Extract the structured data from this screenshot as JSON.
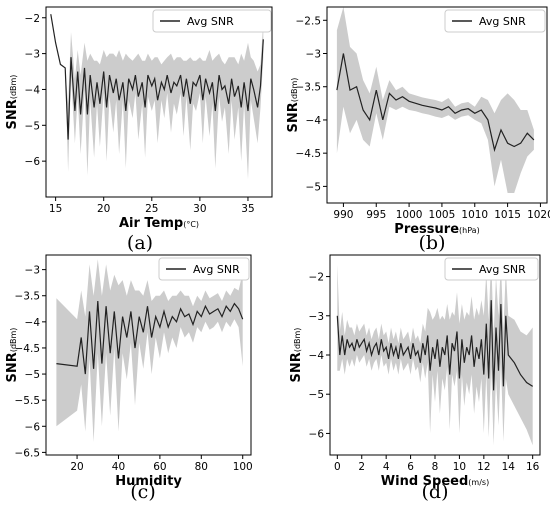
{
  "legend_label": "Avg SNR",
  "chart_data": [
    {
      "panel": "(a)",
      "type": "line",
      "xlabel": "Air Temp",
      "xunit": "(°C)",
      "ylabel": "SNR",
      "yunit": "(dBm)",
      "xlim": [
        14,
        37.5
      ],
      "ylim": [
        -7,
        -1.7
      ],
      "xticks": [
        15,
        20,
        25,
        30,
        35
      ],
      "yticks": [
        -2,
        -3,
        -4,
        -5,
        -6
      ],
      "legend": "top-right",
      "band": true,
      "band_color": "#cccccc",
      "line_color": "#222222",
      "series": [
        {
          "name": "Avg SNR",
          "x": [
            14.5,
            15.0,
            15.5,
            16.0,
            16.3,
            16.6,
            17.0,
            17.3,
            17.6,
            18.0,
            18.3,
            18.6,
            19.0,
            19.3,
            19.6,
            20.0,
            20.3,
            20.6,
            21.0,
            21.3,
            21.6,
            22.0,
            22.3,
            22.6,
            23.0,
            23.3,
            23.6,
            24.0,
            24.3,
            24.6,
            25.0,
            25.3,
            25.6,
            26.0,
            26.3,
            26.6,
            27.0,
            27.3,
            27.6,
            28.0,
            28.3,
            28.6,
            29.0,
            29.3,
            29.6,
            30.0,
            30.3,
            30.6,
            31.0,
            31.3,
            31.6,
            32.0,
            32.3,
            32.6,
            33.0,
            33.3,
            33.6,
            34.0,
            34.3,
            34.6,
            35.0,
            35.3,
            35.6,
            36.0,
            36.3,
            36.6
          ],
          "values": [
            -1.9,
            -2.7,
            -3.3,
            -3.4,
            -5.4,
            -3.1,
            -4.6,
            -3.5,
            -4.7,
            -3.4,
            -4.7,
            -3.6,
            -4.5,
            -3.8,
            -4.4,
            -3.5,
            -4.5,
            -3.6,
            -4.1,
            -3.7,
            -4.3,
            -3.8,
            -4.6,
            -3.7,
            -4.0,
            -3.6,
            -4.2,
            -3.8,
            -4.5,
            -3.6,
            -3.9,
            -3.7,
            -4.3,
            -3.8,
            -4.0,
            -3.6,
            -4.1,
            -3.8,
            -3.9,
            -3.6,
            -4.2,
            -3.7,
            -4.4,
            -3.8,
            -3.9,
            -3.6,
            -4.3,
            -3.7,
            -4.1,
            -3.8,
            -4.6,
            -3.6,
            -4.0,
            -3.9,
            -4.4,
            -3.7,
            -4.2,
            -3.9,
            -4.5,
            -3.8,
            -4.6,
            -3.7,
            -4.0,
            -4.5,
            -3.9,
            -2.6
          ],
          "lower": [
            -1.9,
            -2.7,
            -3.3,
            -3.4,
            -6.3,
            -3.6,
            -5.5,
            -4.2,
            -5.8,
            -4.0,
            -6.4,
            -4.3,
            -5.9,
            -4.4,
            -5.6,
            -4.1,
            -6.0,
            -4.2,
            -5.2,
            -4.3,
            -5.8,
            -4.3,
            -6.2,
            -4.3,
            -4.8,
            -4.1,
            -5.4,
            -4.4,
            -5.9,
            -4.2,
            -4.6,
            -4.3,
            -5.5,
            -4.3,
            -4.8,
            -4.1,
            -5.2,
            -4.4,
            -4.7,
            -4.1,
            -5.3,
            -4.2,
            -5.7,
            -4.4,
            -4.6,
            -4.1,
            -5.5,
            -4.2,
            -5.3,
            -4.4,
            -6.2,
            -4.2,
            -4.9,
            -4.5,
            -5.8,
            -4.3,
            -5.4,
            -4.5,
            -6.0,
            -4.4,
            -6.5,
            -4.3,
            -4.8,
            -5.5,
            -4.5,
            -3.1
          ],
          "upper": [
            -1.9,
            -2.7,
            -3.3,
            -3.4,
            -4.4,
            -2.4,
            -3.7,
            -2.9,
            -3.6,
            -2.7,
            -3.2,
            -3.0,
            -3.2,
            -3.2,
            -3.3,
            -2.9,
            -3.1,
            -3.0,
            -3.0,
            -3.1,
            -2.9,
            -3.2,
            -3.0,
            -3.1,
            -3.2,
            -3.1,
            -3.0,
            -3.2,
            -3.2,
            -3.0,
            -3.2,
            -3.1,
            -3.1,
            -3.3,
            -3.2,
            -3.1,
            -3.0,
            -3.2,
            -3.1,
            -3.1,
            -3.2,
            -3.2,
            -3.1,
            -3.2,
            -3.2,
            -3.1,
            -3.2,
            -3.2,
            -2.9,
            -3.2,
            -3.1,
            -3.0,
            -3.2,
            -3.3,
            -3.1,
            -3.1,
            -3.1,
            -3.3,
            -3.0,
            -3.2,
            -2.7,
            -3.1,
            -3.2,
            -3.5,
            -3.3,
            -2.1
          ]
        }
      ]
    },
    {
      "panel": "(b)",
      "type": "line",
      "xlabel": "Pressure",
      "xunit": "(hPa)",
      "ylabel": "SNR",
      "yunit": "(dBm)",
      "xlim": [
        987.5,
        1021
      ],
      "ylim": [
        -5.25,
        -2.3
      ],
      "xticks": [
        990,
        995,
        1000,
        1005,
        1010,
        1015,
        1020
      ],
      "yticks": [
        -2.5,
        -3.0,
        -3.5,
        -4.0,
        -4.5,
        -5.0
      ],
      "legend": "top-right",
      "band": true,
      "band_color": "#cccccc",
      "line_color": "#222222",
      "series": [
        {
          "name": "Avg SNR",
          "x": [
            989,
            990,
            991,
            992,
            993,
            994,
            995,
            996,
            997,
            998,
            999,
            1000,
            1001,
            1002,
            1003,
            1004,
            1005,
            1006,
            1007,
            1008,
            1009,
            1010,
            1011,
            1012,
            1013,
            1014,
            1015,
            1016,
            1017,
            1018,
            1019
          ],
          "values": [
            -3.55,
            -3.0,
            -3.55,
            -3.5,
            -3.85,
            -4.0,
            -3.55,
            -4.0,
            -3.6,
            -3.7,
            -3.65,
            -3.72,
            -3.75,
            -3.78,
            -3.8,
            -3.82,
            -3.85,
            -3.8,
            -3.9,
            -3.85,
            -3.83,
            -3.9,
            -3.85,
            -4.0,
            -4.45,
            -4.15,
            -4.35,
            -4.4,
            -4.35,
            -4.2,
            -4.3
          ],
          "lower": [
            -4.5,
            -3.8,
            -4.2,
            -4.0,
            -4.3,
            -4.4,
            -3.9,
            -4.3,
            -3.8,
            -3.85,
            -3.8,
            -3.85,
            -3.87,
            -3.9,
            -3.92,
            -3.95,
            -3.97,
            -3.93,
            -4.0,
            -3.95,
            -3.93,
            -4.0,
            -4.05,
            -4.3,
            -5.0,
            -4.6,
            -5.1,
            -5.1,
            -4.8,
            -4.55,
            -4.45
          ],
          "upper": [
            -2.65,
            -2.3,
            -2.9,
            -3.0,
            -3.4,
            -3.6,
            -3.2,
            -3.7,
            -3.4,
            -3.55,
            -3.5,
            -3.6,
            -3.63,
            -3.66,
            -3.68,
            -3.7,
            -3.73,
            -3.67,
            -3.8,
            -3.75,
            -3.73,
            -3.8,
            -3.65,
            -3.7,
            -3.9,
            -3.7,
            -3.6,
            -3.7,
            -3.85,
            -3.85,
            -4.15
          ]
        }
      ]
    },
    {
      "panel": "(c)",
      "type": "line",
      "xlabel": "Humidity",
      "xunit": "",
      "ylabel": "SNR",
      "yunit": "(dBm)",
      "xlim": [
        5,
        104
      ],
      "ylim": [
        -6.55,
        -2.72
      ],
      "xticks": [
        20,
        40,
        60,
        80,
        100
      ],
      "yticks": [
        -3.0,
        -3.5,
        -4.0,
        -4.5,
        -5.0,
        -5.5,
        -6.0,
        -6.5
      ],
      "legend": "top-right",
      "band": true,
      "band_color": "#cccccc",
      "line_color": "#222222",
      "series": [
        {
          "name": "Avg SNR",
          "x": [
            10,
            20,
            22,
            24,
            26,
            28,
            30,
            32,
            34,
            36,
            38,
            40,
            42,
            44,
            46,
            48,
            50,
            52,
            54,
            56,
            58,
            60,
            62,
            64,
            66,
            68,
            70,
            72,
            74,
            76,
            78,
            80,
            82,
            84,
            86,
            88,
            90,
            92,
            94,
            96,
            98,
            100
          ],
          "values": [
            -4.8,
            -4.85,
            -4.3,
            -5.0,
            -3.8,
            -4.9,
            -3.6,
            -4.8,
            -3.7,
            -4.6,
            -3.8,
            -4.7,
            -3.9,
            -4.3,
            -3.8,
            -4.5,
            -3.9,
            -4.2,
            -3.7,
            -4.3,
            -3.9,
            -4.1,
            -3.8,
            -4.1,
            -3.9,
            -4.0,
            -3.75,
            -3.9,
            -3.85,
            -4.05,
            -3.8,
            -3.9,
            -3.7,
            -3.85,
            -3.8,
            -3.75,
            -3.9,
            -3.7,
            -3.8,
            -3.65,
            -3.75,
            -3.95
          ],
          "lower": [
            -6.0,
            -5.7,
            -5.2,
            -6.1,
            -4.7,
            -6.3,
            -4.6,
            -6.0,
            -4.6,
            -5.8,
            -4.5,
            -6.1,
            -4.6,
            -5.1,
            -4.4,
            -5.6,
            -4.4,
            -4.9,
            -4.2,
            -5.0,
            -4.3,
            -4.7,
            -4.2,
            -4.6,
            -4.3,
            -4.5,
            -4.1,
            -4.3,
            -4.2,
            -4.4,
            -4.1,
            -4.2,
            -4.0,
            -4.15,
            -4.1,
            -4.0,
            -4.2,
            -4.0,
            -4.1,
            -3.95,
            -4.1,
            -4.85
          ],
          "upper": [
            -3.55,
            -3.95,
            -3.4,
            -3.9,
            -2.9,
            -3.5,
            -2.8,
            -3.5,
            -2.9,
            -3.4,
            -3.1,
            -3.3,
            -3.2,
            -3.5,
            -3.2,
            -3.4,
            -3.4,
            -3.5,
            -3.2,
            -3.6,
            -3.5,
            -3.5,
            -3.4,
            -3.6,
            -3.5,
            -3.5,
            -3.4,
            -3.5,
            -3.5,
            -3.7,
            -3.5,
            -3.6,
            -3.4,
            -3.55,
            -3.5,
            -3.45,
            -3.6,
            -3.4,
            -3.5,
            -3.35,
            -3.4,
            -3.05
          ]
        }
      ]
    },
    {
      "panel": "(d)",
      "type": "line",
      "xlabel": "Wind Speed",
      "xunit": "(m/s)",
      "ylabel": "SNR",
      "yunit": "(dBm)",
      "xlim": [
        -0.6,
        16.6
      ],
      "ylim": [
        -6.55,
        -1.45
      ],
      "xticks": [
        0,
        2,
        4,
        6,
        8,
        10,
        12,
        14,
        16
      ],
      "yticks": [
        -2,
        -3,
        -4,
        -5,
        -6
      ],
      "legend": "top-right",
      "band": true,
      "band_color": "#cccccc",
      "line_color": "#222222",
      "series": [
        {
          "name": "Avg SNR",
          "x": [
            0.0,
            0.2,
            0.4,
            0.6,
            0.8,
            1.0,
            1.2,
            1.4,
            1.6,
            1.8,
            2.0,
            2.2,
            2.4,
            2.6,
            2.8,
            3.0,
            3.2,
            3.4,
            3.6,
            3.8,
            4.0,
            4.2,
            4.4,
            4.6,
            4.8,
            5.0,
            5.2,
            5.4,
            5.6,
            5.8,
            6.0,
            6.2,
            6.4,
            6.6,
            6.8,
            7.0,
            7.2,
            7.4,
            7.6,
            7.8,
            8.0,
            8.2,
            8.4,
            8.6,
            8.8,
            9.0,
            9.2,
            9.4,
            9.6,
            9.8,
            10.0,
            10.2,
            10.4,
            10.6,
            10.8,
            11.0,
            11.2,
            11.4,
            11.6,
            11.8,
            12.0,
            12.2,
            12.4,
            12.6,
            12.8,
            13.0,
            13.2,
            13.4,
            13.6,
            13.8,
            14.0,
            14.5,
            15.0,
            15.5,
            16.0
          ],
          "values": [
            -3.0,
            -4.0,
            -3.5,
            -4.0,
            -3.6,
            -3.8,
            -3.7,
            -3.9,
            -3.6,
            -3.8,
            -3.7,
            -3.6,
            -3.9,
            -3.7,
            -4.0,
            -3.8,
            -3.7,
            -4.0,
            -3.6,
            -3.9,
            -3.8,
            -4.1,
            -3.7,
            -4.0,
            -3.8,
            -4.1,
            -3.7,
            -4.0,
            -3.9,
            -3.8,
            -4.1,
            -3.7,
            -4.0,
            -3.9,
            -4.2,
            -3.7,
            -4.0,
            -3.5,
            -4.4,
            -3.8,
            -4.1,
            -3.6,
            -4.3,
            -3.8,
            -4.0,
            -3.5,
            -4.5,
            -3.7,
            -3.9,
            -3.4,
            -4.6,
            -3.6,
            -4.2,
            -3.8,
            -4.0,
            -3.5,
            -4.3,
            -3.8,
            -4.1,
            -3.6,
            -4.5,
            -3.2,
            -4.6,
            -2.6,
            -4.9,
            -3.3,
            -4.4,
            -2.7,
            -4.8,
            -3.0,
            -4.0,
            -4.2,
            -4.5,
            -4.7,
            -4.8
          ],
          "lower": [
            -4.4,
            -4.4,
            -4.1,
            -4.5,
            -4.1,
            -4.3,
            -4.1,
            -4.3,
            -4.0,
            -4.2,
            -4.1,
            -4.0,
            -4.3,
            -4.1,
            -4.4,
            -4.2,
            -4.1,
            -4.4,
            -4.0,
            -4.3,
            -4.2,
            -4.5,
            -4.1,
            -4.4,
            -4.2,
            -4.5,
            -4.1,
            -4.4,
            -4.3,
            -4.2,
            -4.5,
            -4.1,
            -4.4,
            -4.3,
            -4.7,
            -4.2,
            -4.6,
            -4.2,
            -6.0,
            -4.5,
            -5.2,
            -4.4,
            -5.5,
            -4.6,
            -4.9,
            -4.3,
            -5.9,
            -4.5,
            -4.8,
            -4.4,
            -6.0,
            -4.5,
            -5.3,
            -4.7,
            -5.0,
            -4.5,
            -5.5,
            -4.8,
            -5.2,
            -4.6,
            -6.0,
            -4.5,
            -6.1,
            -4.3,
            -6.3,
            -4.6,
            -5.8,
            -4.2,
            -6.2,
            -4.6,
            -5.0,
            -5.3,
            -5.6,
            -5.9,
            -6.3
          ],
          "upper": [
            -1.7,
            -3.4,
            -2.9,
            -3.5,
            -3.1,
            -3.3,
            -3.3,
            -3.5,
            -3.2,
            -3.4,
            -3.3,
            -3.2,
            -3.5,
            -3.3,
            -3.6,
            -3.4,
            -3.3,
            -3.6,
            -3.2,
            -3.5,
            -3.4,
            -3.7,
            -3.3,
            -3.6,
            -3.4,
            -3.7,
            -3.3,
            -3.6,
            -3.5,
            -3.4,
            -3.7,
            -3.3,
            -3.6,
            -3.5,
            -3.7,
            -3.2,
            -3.4,
            -2.8,
            -2.9,
            -3.1,
            -3.0,
            -2.8,
            -3.1,
            -3.0,
            -3.1,
            -2.7,
            -3.1,
            -2.9,
            -3.0,
            -2.4,
            -3.2,
            -2.7,
            -3.1,
            -2.9,
            -3.0,
            -2.5,
            -3.1,
            -2.8,
            -3.0,
            -2.6,
            -3.0,
            -1.9,
            -3.1,
            -1.5,
            -3.5,
            -2.0,
            -3.0,
            -1.6,
            -3.4,
            -1.8,
            -3.0,
            -3.1,
            -3.4,
            -3.5,
            -3.3
          ]
        }
      ]
    }
  ]
}
